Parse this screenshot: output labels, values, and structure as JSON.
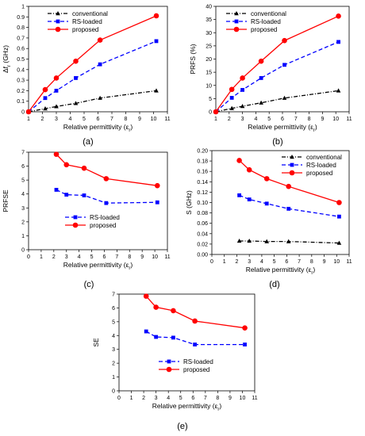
{
  "chart_data": [
    {
      "id": "a",
      "type": "line",
      "caption": "(a)",
      "xlabel": "Relative permittivity (ε",
      "xlabel_sub": "r",
      "xlabel_end": ")",
      "ylabel": "Δf",
      "ylabel_sub": "r",
      "ylabel_end": " (GHz)",
      "xlim": [
        1,
        11
      ],
      "ylim": [
        0,
        1.0
      ],
      "xticks": [
        1,
        2,
        3,
        4,
        5,
        6,
        7,
        8,
        9,
        10,
        11
      ],
      "yticks": [
        0,
        0.1,
        0.2,
        0.3,
        0.4,
        0.5,
        0.6,
        0.7,
        0.8,
        0.9,
        1.0
      ],
      "ytick_labels": [
        "0",
        "0.1",
        "0.2",
        "0.3",
        "0.4",
        "0.5",
        "0.6",
        "0.7",
        "0.8",
        "0.9",
        "1"
      ],
      "legend_position": "top-left",
      "series": [
        {
          "name": "conventional",
          "style": "conventional",
          "x": [
            1,
            2.2,
            3,
            4.4,
            6.15,
            10.2
          ],
          "y": [
            0,
            0.03,
            0.05,
            0.08,
            0.13,
            0.2
          ]
        },
        {
          "name": "RS-loaded",
          "style": "rs",
          "x": [
            1,
            2.2,
            3,
            4.4,
            6.15,
            10.2
          ],
          "y": [
            0,
            0.13,
            0.2,
            0.32,
            0.45,
            0.67
          ]
        },
        {
          "name": "proposed",
          "style": "proposed",
          "x": [
            1,
            2.2,
            3,
            4.4,
            6.15,
            10.2
          ],
          "y": [
            0,
            0.21,
            0.32,
            0.48,
            0.68,
            0.91
          ]
        }
      ]
    },
    {
      "id": "b",
      "type": "line",
      "caption": "(b)",
      "xlabel": "Relative permittivity (ε",
      "xlabel_sub": "r",
      "xlabel_end": ")",
      "ylabel": "PRFS (%)",
      "xlim": [
        1,
        11
      ],
      "ylim": [
        0,
        40
      ],
      "xticks": [
        1,
        2,
        3,
        4,
        5,
        6,
        7,
        8,
        9,
        10,
        11
      ],
      "yticks": [
        0,
        5,
        10,
        15,
        20,
        25,
        30,
        35,
        40
      ],
      "ytick_labels": [
        "0",
        "5",
        "10",
        "15",
        "20",
        "25",
        "30",
        "35",
        "40"
      ],
      "legend_position": "top-left",
      "series": [
        {
          "name": "conventional",
          "style": "conventional",
          "x": [
            1,
            2.2,
            3,
            4.4,
            6.15,
            10.2
          ],
          "y": [
            0,
            1.3,
            2.1,
            3.4,
            5.2,
            8
          ]
        },
        {
          "name": "RS-loaded",
          "style": "rs",
          "x": [
            1,
            2.2,
            3,
            4.4,
            6.15,
            10.2
          ],
          "y": [
            0,
            5.3,
            8.3,
            12.8,
            17.8,
            26.5
          ]
        },
        {
          "name": "proposed",
          "style": "proposed",
          "x": [
            1,
            2.2,
            3,
            4.4,
            6.15,
            10.2
          ],
          "y": [
            0,
            8.5,
            12.8,
            19.2,
            27,
            36.3
          ]
        }
      ]
    },
    {
      "id": "c",
      "type": "line",
      "caption": "(c)",
      "xlabel": "Relative permittivity (ε",
      "xlabel_sub": "r",
      "xlabel_end": ")",
      "ylabel": "PRFSE",
      "xlim": [
        0,
        11
      ],
      "ylim": [
        0,
        7
      ],
      "xticks": [
        0,
        1,
        2,
        3,
        4,
        5,
        6,
        7,
        8,
        9,
        10,
        11
      ],
      "yticks": [
        0,
        1,
        2,
        3,
        4,
        5,
        6,
        7
      ],
      "ytick_labels": [
        "0",
        "1",
        "2",
        "3",
        "4",
        "5",
        "6",
        "7"
      ],
      "legend_position": "lower-middle",
      "series": [
        {
          "name": "RS-loaded",
          "style": "rs",
          "x": [
            2.2,
            3,
            4.4,
            6.15,
            10.2
          ],
          "y": [
            4.3,
            3.95,
            3.9,
            3.35,
            3.4
          ]
        },
        {
          "name": "proposed",
          "style": "proposed",
          "x": [
            2.2,
            3,
            4.4,
            6.15,
            10.2
          ],
          "y": [
            6.85,
            6.1,
            5.85,
            5.1,
            4.6
          ]
        }
      ]
    },
    {
      "id": "d",
      "type": "line",
      "caption": "(d)",
      "xlabel": "Relative permittivity (ε",
      "xlabel_sub": "r",
      "xlabel_end": ")",
      "ylabel": "S (GHz)",
      "xlim": [
        0,
        11
      ],
      "ylim": [
        0,
        0.2
      ],
      "xticks": [
        0,
        1,
        2,
        3,
        4,
        5,
        6,
        7,
        8,
        9,
        10,
        11
      ],
      "yticks": [
        0,
        0.02,
        0.04,
        0.06,
        0.08,
        0.1,
        0.12,
        0.14,
        0.16,
        0.18,
        0.2
      ],
      "ytick_labels": [
        "0.00",
        "0.02",
        "0.04",
        "0.06",
        "0.08",
        "0.10",
        "0.12",
        "0.14",
        "0.16",
        "0.18",
        "0.20"
      ],
      "legend_position": "top-right",
      "series": [
        {
          "name": "conventional",
          "style": "conventional",
          "x": [
            2.2,
            3,
            4.4,
            6.15,
            10.2
          ],
          "y": [
            0.026,
            0.026,
            0.025,
            0.025,
            0.022
          ]
        },
        {
          "name": "RS-loaded",
          "style": "rs",
          "x": [
            2.2,
            3,
            4.4,
            6.15,
            10.2
          ],
          "y": [
            0.114,
            0.106,
            0.098,
            0.088,
            0.073
          ]
        },
        {
          "name": "proposed",
          "style": "proposed",
          "x": [
            2.2,
            3,
            4.4,
            6.15,
            10.2
          ],
          "y": [
            0.181,
            0.163,
            0.146,
            0.131,
            0.1
          ]
        }
      ]
    },
    {
      "id": "e",
      "type": "line",
      "caption": "(e)",
      "xlabel": "Relative permittivity (ε",
      "xlabel_sub": "r",
      "xlabel_end": ")",
      "ylabel": "SE",
      "xlim": [
        0,
        11
      ],
      "ylim": [
        0,
        7
      ],
      "xticks": [
        0,
        1,
        2,
        3,
        4,
        5,
        6,
        7,
        8,
        9,
        10,
        11
      ],
      "yticks": [
        0,
        1,
        2,
        3,
        4,
        5,
        6,
        7
      ],
      "ytick_labels": [
        "0",
        "1",
        "2",
        "3",
        "4",
        "5",
        "6",
        "7"
      ],
      "legend_position": "lower-middle",
      "series": [
        {
          "name": "RS-loaded",
          "style": "rs",
          "x": [
            2.2,
            3,
            4.4,
            6.15,
            10.2
          ],
          "y": [
            4.3,
            3.9,
            3.85,
            3.35,
            3.35
          ]
        },
        {
          "name": "proposed",
          "style": "proposed",
          "x": [
            2.2,
            3,
            4.4,
            6.15,
            10.2
          ],
          "y": [
            6.85,
            6.05,
            5.8,
            5.05,
            4.55
          ]
        }
      ]
    }
  ],
  "styles": {
    "conventional": {
      "color": "#000000",
      "marker": "triangle",
      "dash": "5,2,1,2"
    },
    "rs": {
      "color": "#0000ff",
      "marker": "square",
      "dash": "5,3"
    },
    "proposed": {
      "color": "#ff0000",
      "marker": "circle",
      "dash": ""
    }
  }
}
